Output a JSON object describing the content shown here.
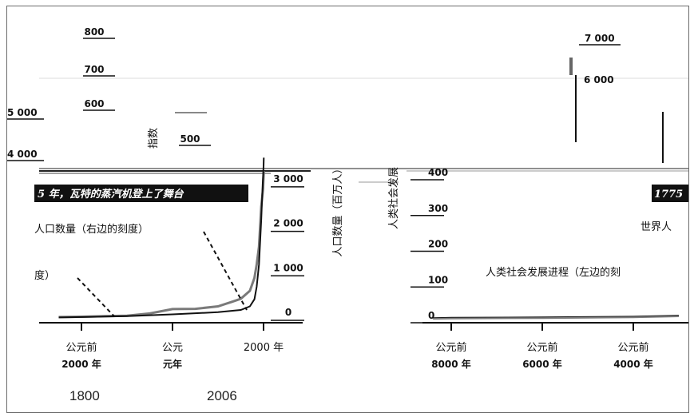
{
  "chart_data": [
    {
      "type": "line",
      "x_ticks": [
        "公元前\n2000 年",
        "公元\n元年",
        "2000 年"
      ],
      "x_values": [
        -2000,
        0,
        2000
      ],
      "right_axis_label": "人口数量（百万人）",
      "right_ticks": [
        "0",
        "1 000",
        "2 000",
        "3 000"
      ],
      "right_ylim": [
        0,
        3500
      ],
      "left_axis_label": "指数",
      "left_ticks": [
        "500",
        "600",
        "700",
        "800"
      ],
      "left_ticks_partial": [
        "4 000",
        "5 000"
      ],
      "banner": "5 年，瓦特的蒸汽机登上了舞台",
      "annotations": [
        "人口数量（右边的刻度）",
        "度）"
      ],
      "series": [
        {
          "name": "人口数量（右边的刻度）",
          "color": "#7a7a7a",
          "x": [
            -2500,
            -2000,
            -1500,
            -1000,
            -500,
            0,
            500,
            1000,
            1300,
            1500,
            1700,
            1800,
            1850,
            1900,
            1950,
            1990,
            2006
          ],
          "y": [
            20,
            27,
            40,
            50,
            100,
            200,
            205,
            260,
            360,
            430,
            610,
            900,
            1200,
            1600,
            2500,
            2900,
            3300
          ]
        },
        {
          "name": "度）",
          "color": "#111111",
          "x": [
            -2500,
            -2000,
            -1000,
            0,
            1000,
            1500,
            1700,
            1800,
            1850,
            1900,
            1950,
            1980,
            2000,
            2006
          ],
          "y": [
            10,
            20,
            40,
            80,
            130,
            180,
            260,
            420,
            700,
            1200,
            2200,
            3000,
            3400,
            3600
          ]
        }
      ]
    },
    {
      "type": "line",
      "x_ticks": [
        "公元前\n8000 年",
        "公元前\n6000 年",
        "公元前\n4000 年"
      ],
      "x_values": [
        -8000,
        -6000,
        -4000
      ],
      "left_axis_label": "人类社会发展",
      "left_ticks": [
        "0",
        "100",
        "200",
        "300",
        "400"
      ],
      "ylim": [
        0,
        420
      ],
      "top_ticks": [
        "6 000",
        "7 000"
      ],
      "banner": "1775",
      "annotations": [
        "人类社会发展进程（左边的刻",
        "世界人"
      ],
      "series": [
        {
          "name": "人类社会发展进程（左边的刻",
          "color": "#111111",
          "x": [
            -8400,
            -8000,
            -6000,
            -4000,
            -3000
          ],
          "y": [
            4,
            5,
            6,
            8,
            11
          ]
        },
        {
          "name": "世界人",
          "color": "#7a7a7a",
          "x": [
            -8400,
            -8000,
            -6000,
            -4000,
            -3000
          ],
          "y": [
            2,
            3,
            4,
            6,
            9
          ]
        }
      ]
    }
  ],
  "footer": {
    "left_year": "1800",
    "right_year": "2006"
  }
}
